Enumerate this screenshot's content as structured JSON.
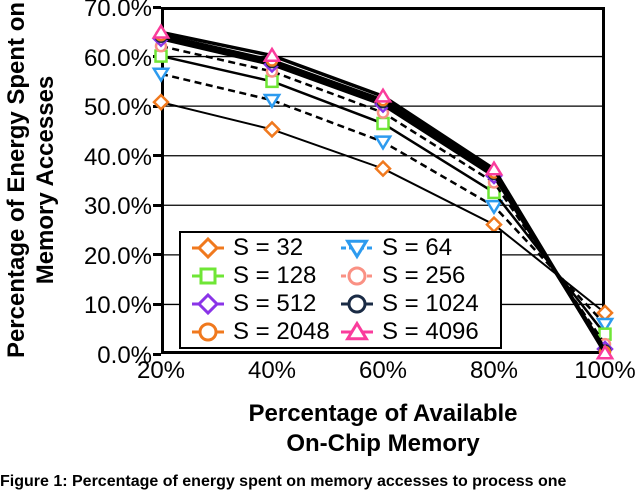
{
  "caption": "Figure 1: Percentage of energy spent on memory accesses to process one",
  "chart_data": {
    "type": "line",
    "title": "",
    "xlabel_line1": "Percentage of Available",
    "xlabel_line2": "On-Chip Memory",
    "ylabel_line1": "Percentage of Energy Spent on",
    "ylabel_line2": "Memory Accesses",
    "x_tick_labels": [
      "20%",
      "40%",
      "60%",
      "80%",
      "100%"
    ],
    "y_tick_labels": [
      "70.0%",
      "60.0%",
      "50.0%",
      "40.0%",
      "30.0%",
      "20.0%",
      "10.0%",
      "0.0%"
    ],
    "x": [
      20,
      40,
      60,
      80,
      100
    ],
    "xlim": [
      20,
      100
    ],
    "ylim": [
      0,
      70
    ],
    "grid": "horizontal",
    "legend_position": "inside-bottom-left",
    "legend_columns": 2,
    "line_color": "#000000",
    "series": [
      {
        "name": "S = 32",
        "marker": "diamond",
        "color": "#F0791E",
        "dash": "solid",
        "width": 2,
        "values": [
          50.8,
          45.3,
          37.4,
          26.1,
          8.3
        ]
      },
      {
        "name": "S = 64",
        "marker": "triangle-down",
        "color": "#2D9BEF",
        "dash": "dashed",
        "width": 2.5,
        "values": [
          56.5,
          51.2,
          42.8,
          29.8,
          6.0
        ]
      },
      {
        "name": "S = 128",
        "marker": "square",
        "color": "#6FE636",
        "dash": "solid",
        "width": 2.5,
        "values": [
          60.1,
          55.0,
          46.5,
          32.6,
          4.0
        ]
      },
      {
        "name": "S = 256",
        "marker": "circle",
        "color": "#FA9184",
        "dash": "dashed",
        "width": 2.5,
        "values": [
          62.1,
          57.0,
          48.7,
          34.6,
          2.0
        ]
      },
      {
        "name": "S = 512",
        "marker": "diamond",
        "color": "#8A34E8",
        "dash": "solid",
        "width": 3.5,
        "values": [
          63.6,
          58.4,
          50.3,
          35.9,
          1.0
        ]
      },
      {
        "name": "S = 1024",
        "marker": "circle",
        "color": "#1A2B45",
        "dash": "solid",
        "width": 3.5,
        "values": [
          64.0,
          58.9,
          50.8,
          36.3,
          0.7
        ]
      },
      {
        "name": "S = 2048",
        "marker": "circle",
        "color": "#F0791E",
        "dash": "solid",
        "width": 3.5,
        "values": [
          64.3,
          59.2,
          51.2,
          36.6,
          0.4
        ]
      },
      {
        "name": "S = 4096",
        "marker": "triangle-up",
        "color": "#FA3C9C",
        "dash": "solid",
        "width": 3.5,
        "values": [
          64.9,
          60.2,
          52.0,
          37.3,
          0.2
        ]
      }
    ]
  }
}
